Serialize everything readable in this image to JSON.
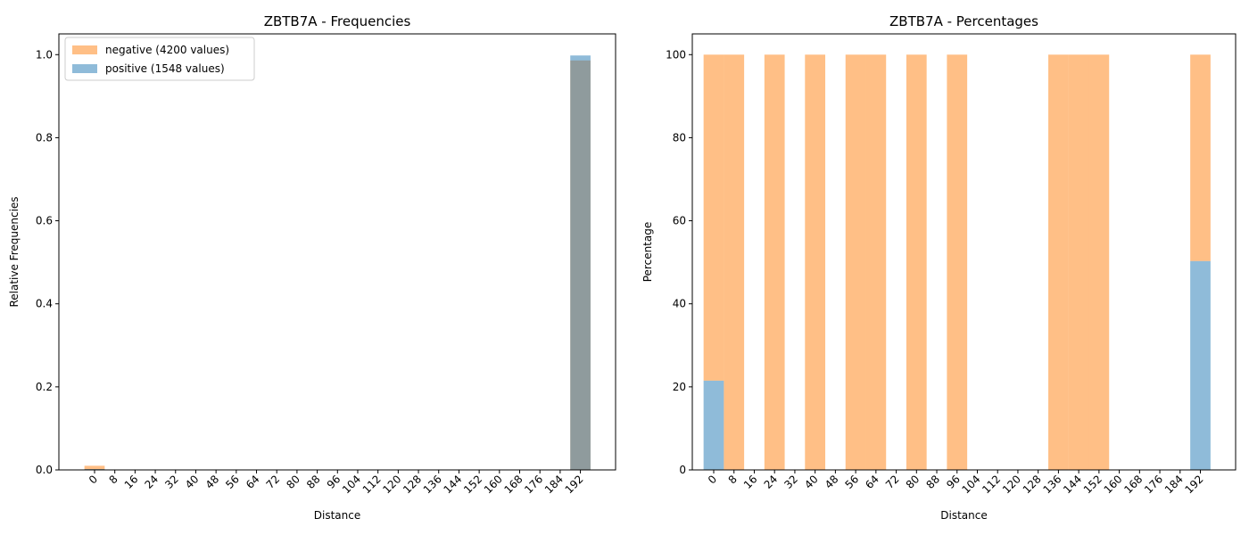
{
  "chart_data": [
    {
      "type": "bar",
      "title": "ZBTB7A - Frequencies",
      "x_label": "Distance",
      "y_label": "Relative Frequencies",
      "x": [
        0,
        8,
        16,
        24,
        32,
        40,
        48,
        56,
        64,
        72,
        80,
        88,
        96,
        104,
        112,
        120,
        128,
        136,
        144,
        152,
        160,
        168,
        176,
        184,
        192
      ],
      "xlim": [
        -14.1,
        205.9
      ],
      "xticks": [
        0,
        8,
        16,
        24,
        32,
        40,
        48,
        56,
        64,
        72,
        80,
        88,
        96,
        104,
        112,
        120,
        128,
        136,
        144,
        152,
        160,
        168,
        176,
        184,
        192
      ],
      "ylim": [
        0,
        1.05
      ],
      "yticks": [
        {
          "value": 0,
          "label": "0.0"
        },
        0.2,
        0.4,
        0.6,
        0.8,
        {
          "value": 1,
          "label": "1.0"
        }
      ],
      "stacked": false,
      "opacity": 0.5,
      "legend": "upper left",
      "series": [
        {
          "name": "negative (4200 values)",
          "color": "#ff7f0e",
          "values": [
            0.01,
            0.0005,
            0,
            0.0005,
            0,
            0.0005,
            0,
            0.0005,
            0.0005,
            0,
            0.0005,
            0,
            0.0005,
            0,
            0,
            0,
            0,
            0.0005,
            0.0005,
            0.0005,
            0,
            0,
            0,
            0,
            0.986
          ]
        },
        {
          "name": "positive (1548 values)",
          "color": "#1f77b4",
          "values": [
            0.002,
            0,
            0,
            0,
            0,
            0,
            0,
            0,
            0,
            0,
            0,
            0,
            0,
            0,
            0,
            0,
            0,
            0,
            0,
            0,
            0,
            0,
            0,
            0,
            0.998
          ]
        }
      ]
    },
    {
      "type": "bar",
      "title": "ZBTB7A - Percentages",
      "x_label": "Distance",
      "y_label": "Percentage",
      "x": [
        0,
        8,
        16,
        24,
        32,
        40,
        48,
        56,
        64,
        72,
        80,
        88,
        96,
        104,
        112,
        120,
        128,
        136,
        144,
        152,
        160,
        168,
        176,
        184,
        192
      ],
      "xlim": [
        -8.45,
        205.9
      ],
      "xticks": [
        0,
        8,
        16,
        24,
        32,
        40,
        48,
        56,
        64,
        72,
        80,
        88,
        96,
        104,
        112,
        120,
        128,
        136,
        144,
        152,
        160,
        168,
        176,
        184,
        192
      ],
      "ylim": [
        0,
        105
      ],
      "yticks": [
        0,
        20,
        40,
        60,
        80,
        100
      ],
      "stacked": true,
      "opacity": 0.5,
      "series": [
        {
          "color": "#1f77b4",
          "values": [
            21.5,
            0,
            0,
            0,
            0,
            0,
            0,
            0,
            0,
            0,
            0,
            0,
            0,
            0,
            0,
            0,
            0,
            0,
            0,
            0,
            0,
            0,
            0,
            0,
            50.3
          ]
        },
        {
          "color": "#ff7f0e",
          "values": [
            78.5,
            100,
            0,
            100,
            0,
            100,
            0,
            100,
            100,
            0,
            100,
            0,
            100,
            0,
            0,
            0,
            0,
            100,
            100,
            100,
            0,
            0,
            0,
            0,
            49.7
          ]
        }
      ]
    }
  ]
}
